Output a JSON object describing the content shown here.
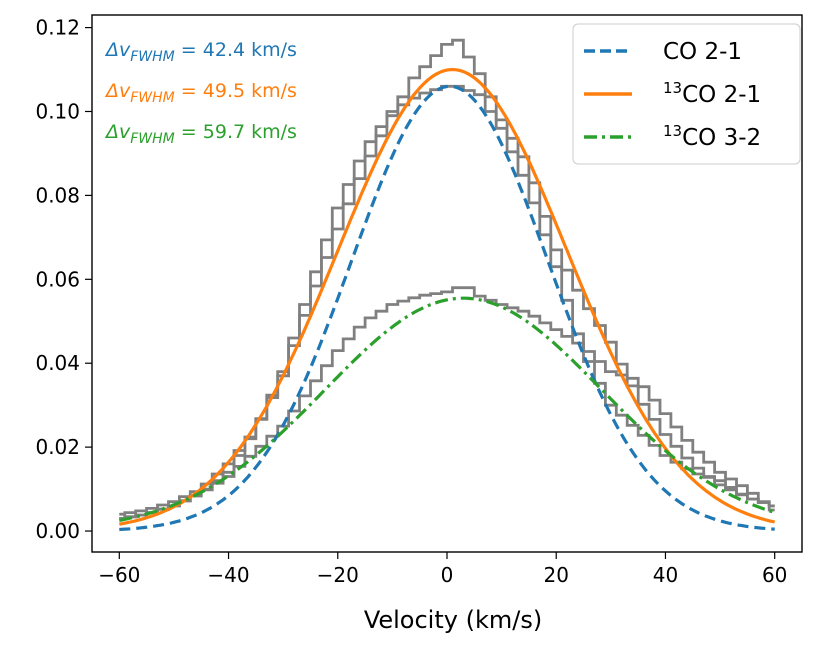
{
  "chart_data": {
    "type": "line",
    "title": "",
    "xlabel": "Velocity (km/s)",
    "ylabel": "",
    "xlim": [
      -65,
      65
    ],
    "ylim": [
      -0.005,
      0.123
    ],
    "xticks": [
      -60,
      -40,
      -20,
      0,
      20,
      40,
      60
    ],
    "yticks": [
      0.0,
      0.02,
      0.04,
      0.06,
      0.08,
      0.1,
      0.12
    ],
    "xtick_labels": [
      "−60",
      "−40",
      "−20",
      "0",
      "20",
      "40",
      "60"
    ],
    "ytick_labels": [
      "0.00",
      "0.02",
      "0.04",
      "0.06",
      "0.08",
      "0.10",
      "0.12"
    ],
    "grid": false,
    "legend_position": "top-right",
    "gaussian_fits": [
      {
        "name": "CO 2-1",
        "legend_main": "CO 2-1",
        "legend_sup": "",
        "color": "#1f77b4",
        "style": "dashed",
        "amplitude": 0.106,
        "center": 0.5,
        "fwhm": 42.4,
        "annotation": {
          "prefix": "Δv",
          "sub": "FWHM",
          "value": " = 42.4 km/s"
        }
      },
      {
        "name": "13CO 2-1",
        "legend_main": "CO 2-1",
        "legend_sup": "13",
        "color": "#ff7f0e",
        "style": "solid",
        "amplitude": 0.11,
        "center": 1.0,
        "fwhm": 49.5,
        "annotation": {
          "prefix": "Δv",
          "sub": "FWHM",
          "value": " = 49.5 km/s"
        }
      },
      {
        "name": "13CO 3-2",
        "legend_main": "CO 3-2",
        "legend_sup": "13",
        "color": "#2ca02c",
        "style": "dashdot",
        "amplitude": 0.0555,
        "center": 3.0,
        "fwhm": 59.7,
        "annotation": {
          "prefix": "Δv",
          "sub": "FWHM",
          "value": " = 59.7 km/s"
        }
      }
    ],
    "observed_spectra": {
      "color": "#808080",
      "series": [
        {
          "name": "CO 2-1 data",
          "x": [
            -60,
            -55,
            -50,
            -45,
            -40,
            -35,
            -30,
            -25,
            -20,
            -15,
            -10,
            -5,
            0,
            2,
            4,
            6,
            10,
            15,
            20,
            25,
            30,
            35,
            40,
            45,
            50,
            55,
            60
          ],
          "y": [
            0.003,
            0.004,
            0.006,
            0.009,
            0.014,
            0.024,
            0.038,
            0.058,
            0.077,
            0.091,
            0.1,
            0.104,
            0.106,
            0.106,
            0.105,
            0.104,
            0.096,
            0.082,
            0.063,
            0.043,
            0.03,
            0.024,
            0.018,
            0.014,
            0.012,
            0.008,
            0.006
          ]
        },
        {
          "name": "13CO 2-1 data",
          "x": [
            -60,
            -55,
            -50,
            -45,
            -40,
            -35,
            -30,
            -25,
            -20,
            -15,
            -10,
            -6,
            -3,
            0,
            2,
            4,
            6,
            10,
            15,
            20,
            25,
            30,
            35,
            40,
            45,
            50,
            55,
            60
          ],
          "y": [
            0.004,
            0.005,
            0.007,
            0.01,
            0.016,
            0.024,
            0.037,
            0.055,
            0.072,
            0.087,
            0.099,
            0.108,
            0.112,
            0.116,
            0.117,
            0.113,
            0.109,
            0.098,
            0.087,
            0.067,
            0.055,
            0.045,
            0.032,
            0.023,
            0.016,
            0.011,
            0.008,
            0.006
          ]
        },
        {
          "name": "13CO 3-2 data",
          "x": [
            -60,
            -55,
            -50,
            -45,
            -40,
            -35,
            -30,
            -25,
            -20,
            -15,
            -10,
            -5,
            0,
            2,
            4,
            6,
            10,
            15,
            20,
            25,
            30,
            35,
            40,
            45,
            50,
            55,
            60
          ],
          "y": [
            0.003,
            0.004,
            0.006,
            0.009,
            0.013,
            0.019,
            0.025,
            0.034,
            0.043,
            0.05,
            0.054,
            0.056,
            0.057,
            0.058,
            0.058,
            0.056,
            0.054,
            0.052,
            0.048,
            0.044,
            0.038,
            0.036,
            0.028,
            0.02,
            0.014,
            0.01,
            0.005
          ]
        }
      ]
    }
  }
}
